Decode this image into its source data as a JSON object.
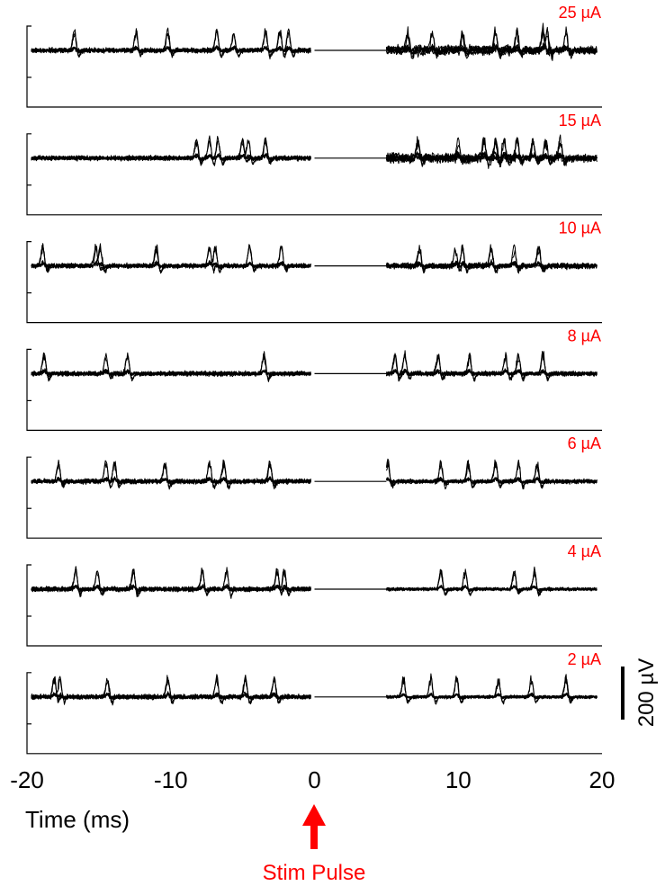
{
  "colors": {
    "trace": "#000000",
    "stim_accent": "#ff0000",
    "background": "#ffffff"
  },
  "chart_data": {
    "type": "line",
    "title": "",
    "xlabel": "Time (ms)",
    "ylabel": "",
    "xlim": [
      -20,
      20
    ],
    "x_ticks": [
      -20,
      -10,
      0,
      10,
      20
    ],
    "x_tick_labels": [
      "-20",
      "-10",
      "0",
      "10",
      "20"
    ],
    "blanking_window_ms": [
      0,
      5
    ],
    "scale_bar": {
      "value": 200,
      "label": "200 µV"
    },
    "stim_marker": {
      "x": 0,
      "label": "Stim Pulse"
    },
    "panels": [
      {
        "label": "25 µA",
        "amplitude_uA": 25,
        "pre_spike_times_ms": [
          -16.7,
          -12.4,
          -10.2,
          -6.8,
          -5.6,
          -3.4,
          -2.4,
          -1.8
        ],
        "post_spike_times_ms": [
          6.5,
          8.2,
          10.3,
          12.6,
          14.1,
          15.9,
          16.2,
          17.5
        ],
        "post_noise_level": 1.6
      },
      {
        "label": "15 µA",
        "amplitude_uA": 15,
        "pre_spike_times_ms": [
          -8.2,
          -7.3,
          -6.7,
          -5.0,
          -4.6,
          -3.4
        ],
        "post_spike_times_ms": [
          7.2,
          10.0,
          11.8,
          12.6,
          13.2,
          14.1,
          15.2,
          16.1,
          17.1
        ],
        "post_noise_level": 1.6
      },
      {
        "label": "10 µA",
        "amplitude_uA": 10,
        "pre_spike_times_ms": [
          -18.9,
          -15.2,
          -14.9,
          -11.0,
          -7.3,
          -6.9,
          -4.5,
          -2.3
        ],
        "post_spike_times_ms": [
          7.3,
          9.8,
          10.3,
          12.3,
          13.9,
          15.6
        ],
        "post_noise_level": 1.2
      },
      {
        "label": "8 µA",
        "amplitude_uA": 8,
        "pre_spike_times_ms": [
          -18.8,
          -14.5,
          -13.0,
          -3.5
        ],
        "post_spike_times_ms": [
          5.6,
          6.3,
          8.6,
          10.8,
          13.3,
          14.2,
          15.9
        ],
        "post_noise_level": 1.0
      },
      {
        "label": "6 µA",
        "amplitude_uA": 6,
        "pre_spike_times_ms": [
          -17.8,
          -14.5,
          -13.9,
          -10.4,
          -7.3,
          -6.3,
          -3.1
        ],
        "post_spike_times_ms": [
          5.1,
          8.8,
          10.7,
          12.6,
          14.2,
          15.5
        ],
        "post_noise_level": 0.9
      },
      {
        "label": "4 µA",
        "amplitude_uA": 4,
        "pre_spike_times_ms": [
          -16.6,
          -15.1,
          -12.6,
          -7.8,
          -6.1,
          -2.6,
          -2.1
        ],
        "post_spike_times_ms": [
          8.8,
          10.5,
          13.9,
          15.3
        ],
        "post_noise_level": 0.7
      },
      {
        "label": "2 µA",
        "amplitude_uA": 2,
        "pre_spike_times_ms": [
          -18.1,
          -17.7,
          -14.4,
          -10.2,
          -6.8,
          -4.8,
          -2.8
        ],
        "post_spike_times_ms": [
          6.2,
          8.1,
          9.9,
          12.8,
          15.1,
          17.5
        ],
        "post_noise_level": 0.7
      }
    ]
  }
}
